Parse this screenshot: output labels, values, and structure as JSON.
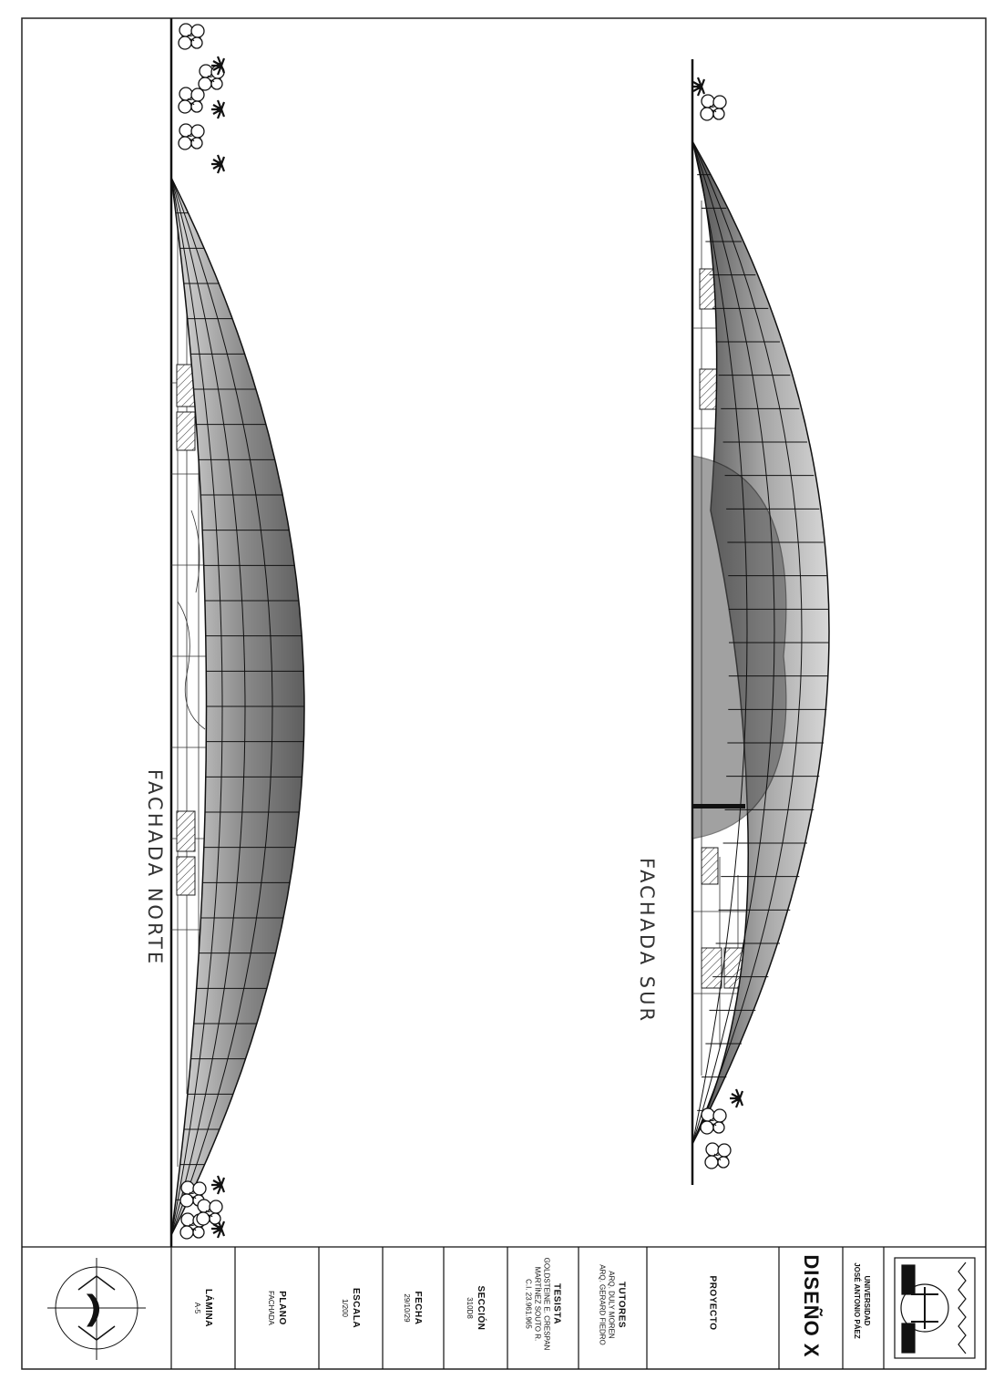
{
  "drawing": {
    "north_title": "FACHADA  NORTE",
    "south_title": "FACHADA  SUR"
  },
  "title_block": {
    "lamina": {
      "label": "LÁMINA",
      "value": "A-5"
    },
    "plano": {
      "label": "PLANO",
      "value": "FACHADA"
    },
    "escala": {
      "label": "ESCALA",
      "value": "1/200"
    },
    "fecha": {
      "label": "FECHA",
      "value": "29/10/29"
    },
    "seccion": {
      "label": "SECCIÓN",
      "value": "310D8"
    },
    "tesista": {
      "label": "TESISTA",
      "lines": [
        "GOLDSTEINE E. CRESPAN",
        "MARTÍNEZ SOUTO R.",
        "C.I. 23.961.965"
      ]
    },
    "tutores": {
      "label": "TUTORES",
      "lines": [
        "ARQ. DULY MOREN",
        "ARQ. GERARD FIEDRO"
      ]
    },
    "proyecto": {
      "label": "PROYECTO"
    },
    "course": "DISEÑO X",
    "university": [
      "UNIVERSIDAD",
      "JOSÉ ANTONIO PÁEZ"
    ]
  },
  "colors": {
    "ink": "#111111",
    "shade_dark": "#6d6d6d",
    "shade_light": "#d2d2d2"
  }
}
